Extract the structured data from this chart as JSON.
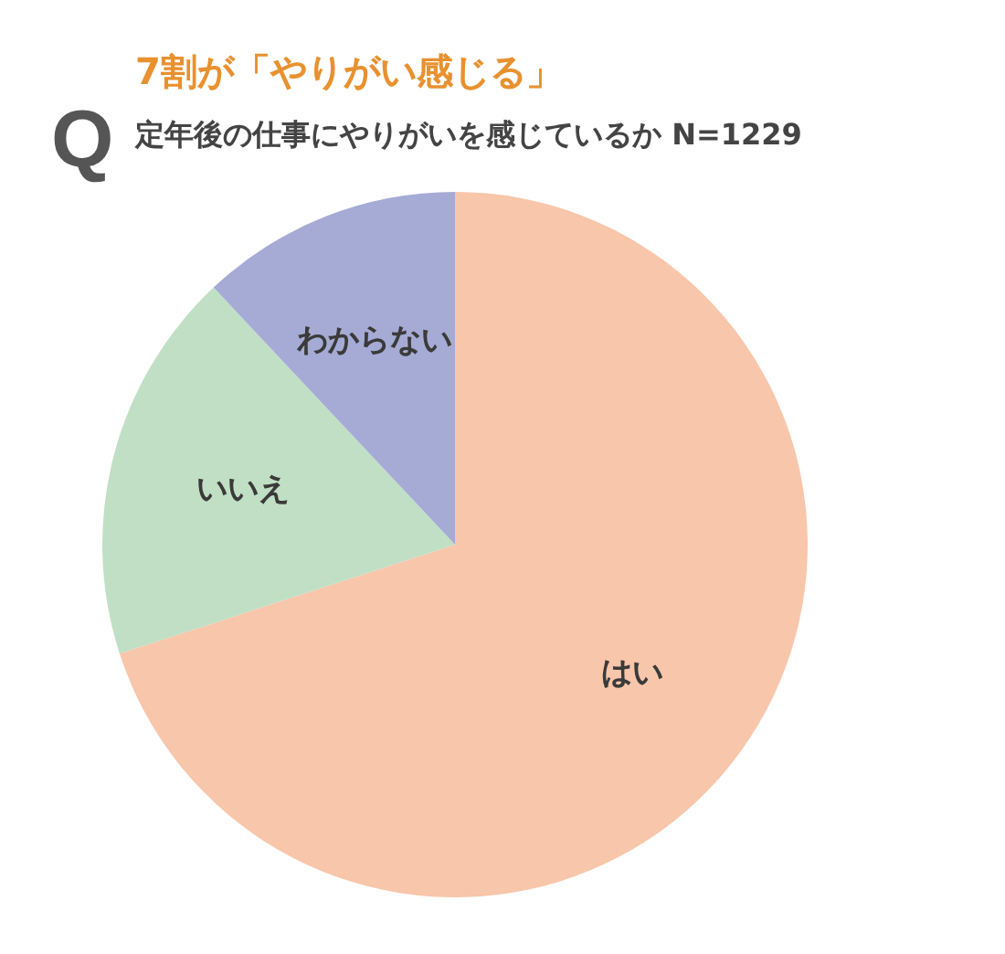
{
  "chart_data": {
    "type": "pie",
    "title": "7割が「やりがい感じる」",
    "subtitle": "定年後の仕事にやりがいを感じているか N=1229",
    "annotations": [
      "Q"
    ],
    "categories": [
      "はい",
      "いいえ",
      "わからない"
    ],
    "values": [
      70,
      18,
      12
    ],
    "colors": [
      "#f8c6aa",
      "#c1dfc4",
      "#a6abd5"
    ]
  }
}
